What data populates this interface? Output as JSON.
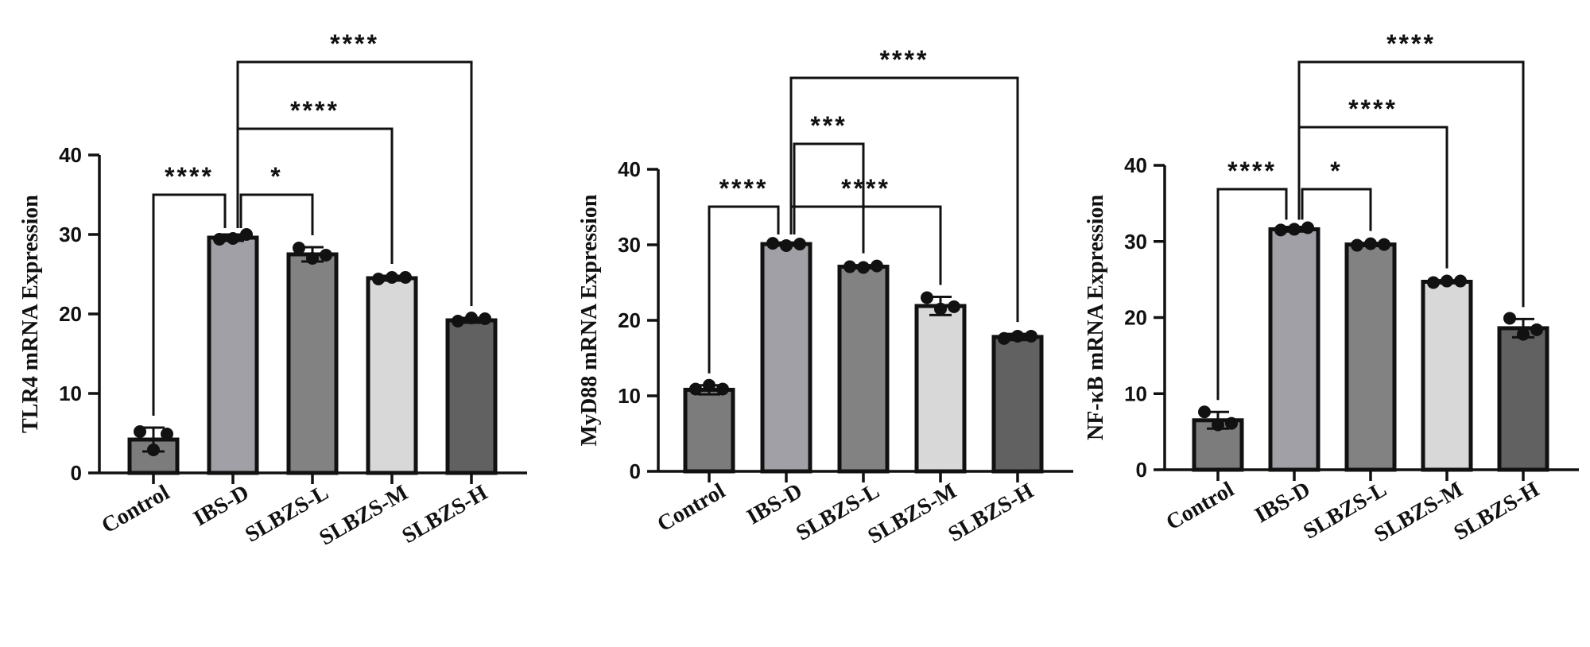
{
  "chart_data": [
    {
      "type": "bar",
      "ylabel": "TLR4 mRNA Expression",
      "ylim": [
        0,
        40
      ],
      "yticks": [
        0,
        10,
        20,
        30,
        40
      ],
      "categories": [
        "Control",
        "IBS-D",
        "SLBZS-L",
        "SLBZS-M",
        "SLBZS-H"
      ],
      "values": [
        4.2,
        29.6,
        27.5,
        24.5,
        19.2
      ],
      "errors": [
        1.5,
        0.4,
        0.9,
        0.3,
        0.3
      ],
      "points": [
        [
          5.2,
          2.9,
          4.9
        ],
        [
          29.4,
          29.5,
          30.0
        ],
        [
          28.3,
          27.0,
          27.4
        ],
        [
          24.4,
          24.6,
          24.6
        ],
        [
          19.1,
          19.5,
          19.4
        ]
      ],
      "colors": [
        "#7c7c7c",
        "#a0a0a6",
        "#828282",
        "#d8d8d8",
        "#616161"
      ],
      "significance": [
        {
          "from": 0,
          "to": 1,
          "label": "****"
        },
        {
          "from": 1,
          "to": 2,
          "label": "*"
        },
        {
          "from": 1,
          "to": 3,
          "label": "****"
        },
        {
          "from": 1,
          "to": 4,
          "label": "****"
        }
      ]
    },
    {
      "type": "bar",
      "ylabel": "MyD88 mRNA Expression",
      "ylim": [
        0,
        40
      ],
      "yticks": [
        0,
        10,
        20,
        30,
        40
      ],
      "categories": [
        "Control",
        "IBS-D",
        "SLBZS-L",
        "SLBZS-M",
        "SLBZS-H"
      ],
      "values": [
        10.8,
        30.1,
        27.1,
        21.9,
        17.8
      ],
      "errors": [
        0.6,
        0.2,
        0.2,
        1.2,
        0.4
      ],
      "points": [
        [
          10.9,
          11.4,
          10.9
        ],
        [
          30.2,
          29.9,
          30.1
        ],
        [
          27.1,
          27.0,
          27.2
        ],
        [
          23.0,
          21.5,
          21.8
        ],
        [
          17.6,
          17.9,
          17.9
        ]
      ],
      "colors": [
        "#7c7c7c",
        "#a0a0a6",
        "#828282",
        "#d8d8d8",
        "#616161"
      ],
      "significance": [
        {
          "from": 0,
          "to": 1,
          "label": "****"
        },
        {
          "from": 1,
          "to": 2,
          "label": "***"
        },
        {
          "from": 1,
          "to": 3,
          "label": "****"
        },
        {
          "from": 1,
          "to": 4,
          "label": "****"
        }
      ]
    },
    {
      "type": "bar",
      "ylabel": "NF-κB mRNA Expression",
      "ylim": [
        0,
        40
      ],
      "yticks": [
        0,
        10,
        20,
        30,
        40
      ],
      "categories": [
        "Control",
        "IBS-D",
        "SLBZS-L",
        "SLBZS-M",
        "SLBZS-H"
      ],
      "values": [
        6.5,
        31.6,
        29.6,
        24.7,
        18.6
      ],
      "errors": [
        1.1,
        0.3,
        0.2,
        0.2,
        1.2
      ],
      "points": [
        [
          7.6,
          5.9,
          6.1
        ],
        [
          31.5,
          31.6,
          31.8
        ],
        [
          29.5,
          29.7,
          29.6
        ],
        [
          24.6,
          24.8,
          24.8
        ],
        [
          19.9,
          17.8,
          18.4
        ]
      ],
      "colors": [
        "#7c7c7c",
        "#a0a0a6",
        "#828282",
        "#d8d8d8",
        "#616161"
      ],
      "significance": [
        {
          "from": 0,
          "to": 1,
          "label": "****"
        },
        {
          "from": 1,
          "to": 2,
          "label": "*"
        },
        {
          "from": 1,
          "to": 3,
          "label": "****"
        },
        {
          "from": 1,
          "to": 4,
          "label": "****"
        }
      ]
    }
  ]
}
